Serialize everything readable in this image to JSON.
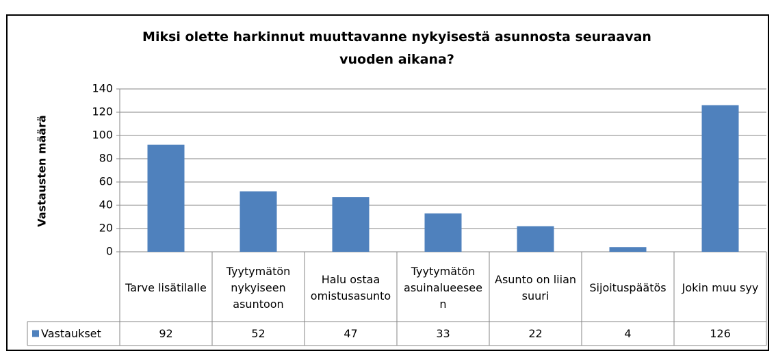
{
  "chart_data": {
    "type": "bar",
    "title": "Miksi olette harkinnut muuttavanne nykyisestä asunnosta seuraavan vuoden aikana?",
    "ylabel": "Vastausten määrä",
    "categories": [
      "Tarve lisätilalle",
      "Tyytymätön nykyiseen asuntoon",
      "Halu ostaa omistusasunto",
      "Tyytymätön asuinalueeseen",
      "Asunto on liian suuri",
      "Sijoituspäätös",
      "Jokin muu syy"
    ],
    "series": [
      {
        "name": "Vastaukset",
        "color": "#4f81bd",
        "values": [
          92,
          52,
          47,
          33,
          22,
          4,
          126
        ]
      }
    ],
    "ylim": [
      0,
      140
    ],
    "yticks": [
      0,
      20,
      40,
      60,
      80,
      100,
      120,
      140
    ],
    "grid": true
  }
}
